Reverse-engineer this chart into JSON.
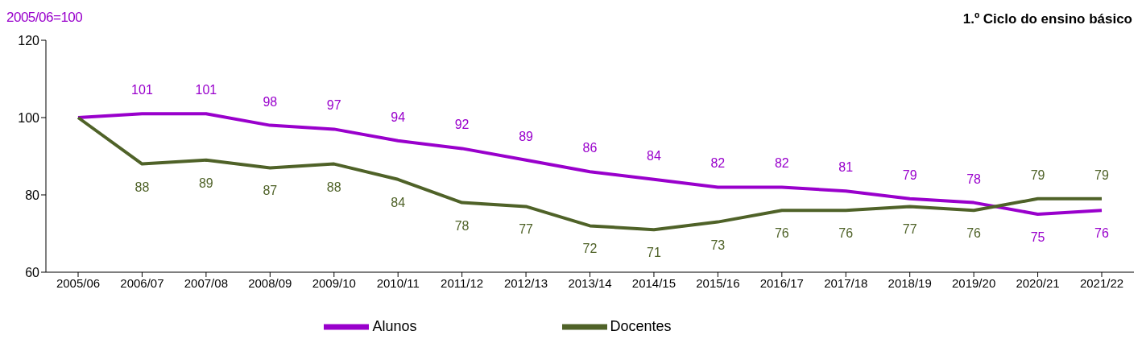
{
  "chart_data": {
    "type": "line",
    "title": "1.º Ciclo do ensino básico",
    "ylabel": "2005/06=100",
    "categories": [
      "2005/06",
      "2006/07",
      "2007/08",
      "2008/09",
      "2009/10",
      "2010/11",
      "2011/12",
      "2012/13",
      "2013/14",
      "2014/15",
      "2015/16",
      "2016/17",
      "2017/18",
      "2018/19",
      "2019/20",
      "2020/21",
      "2021/22"
    ],
    "series": [
      {
        "name": "Alunos",
        "color": "#9900cc",
        "values": [
          100,
          101,
          101,
          98,
          97,
          94,
          92,
          89,
          86,
          84,
          82,
          82,
          81,
          79,
          78,
          75,
          76
        ],
        "value_labels": [
          null,
          "101",
          "101",
          "98",
          "97",
          "94",
          "92",
          "89",
          "86",
          "84",
          "82",
          "82",
          "81",
          "79",
          "78",
          "75",
          "76"
        ]
      },
      {
        "name": "Docentes",
        "color": "#4f6228",
        "values": [
          100,
          88,
          89,
          87,
          88,
          84,
          78,
          77,
          72,
          71,
          73,
          76,
          76,
          77,
          76,
          79,
          79
        ],
        "value_labels": [
          null,
          "88",
          "89",
          "87",
          "88",
          "84",
          "78",
          "77",
          "72",
          "71",
          "73",
          "76",
          "76",
          "77",
          "76",
          "79",
          "79"
        ]
      }
    ],
    "ylim": [
      60,
      120
    ],
    "yticks": [
      60,
      80,
      100,
      120
    ],
    "legend": "bottom",
    "marker": "none",
    "line_style": "solid"
  }
}
